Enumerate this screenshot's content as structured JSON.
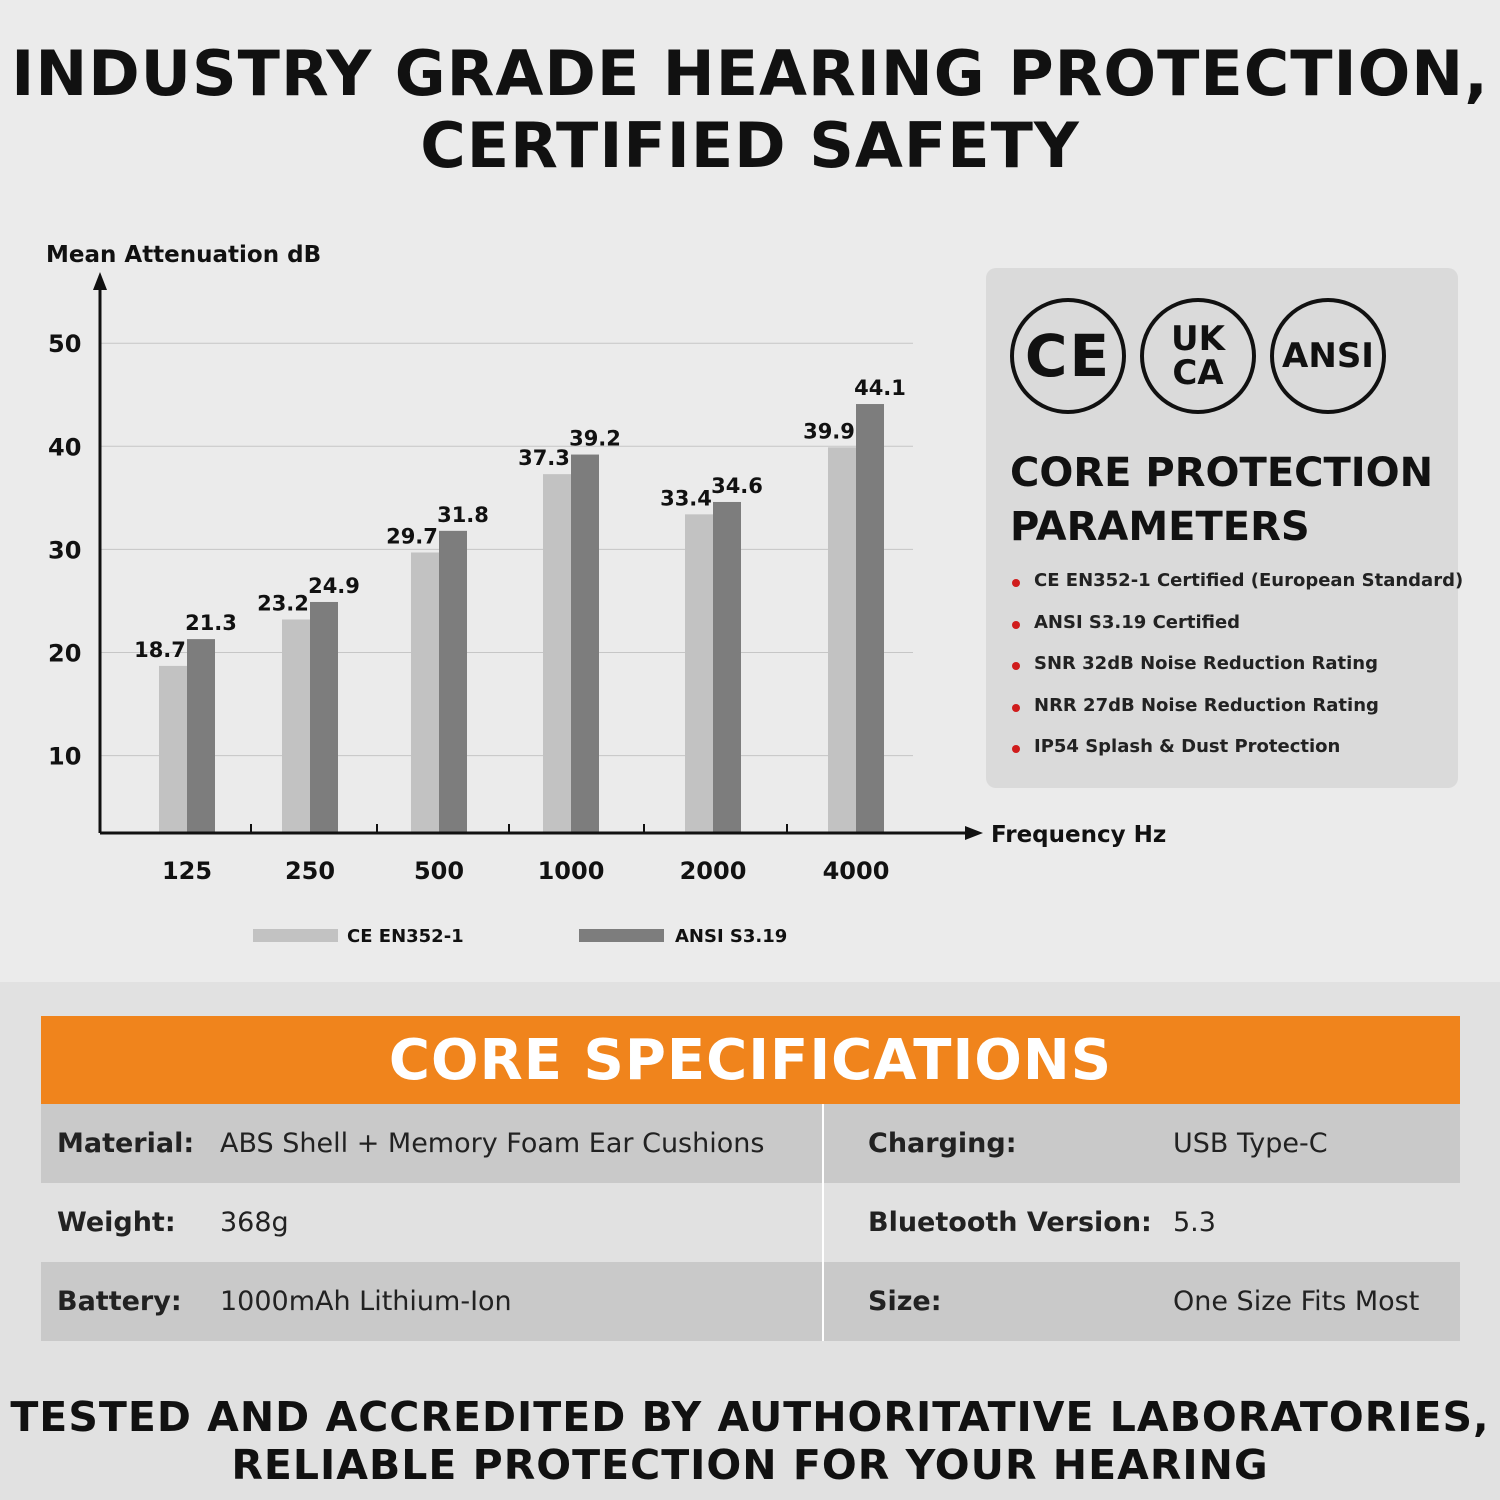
{
  "headline": {
    "line1": "INDUSTRY GRADE HEARING PROTECTION,",
    "line2": "CERTIFIED SAFETY"
  },
  "chart_data": {
    "type": "bar",
    "ylabel": "Mean Attenuation dB",
    "xlabel": "Frequency Hz",
    "categories": [
      "125",
      "250",
      "500",
      "1000",
      "2000",
      "4000"
    ],
    "yticks": [
      10,
      20,
      30,
      40,
      50
    ],
    "grid": true,
    "legend_position": "bottom",
    "series": [
      {
        "name": "CE EN352-1",
        "color": "#c2c2c2",
        "values": [
          18.7,
          23.2,
          29.7,
          37.3,
          33.4,
          39.9
        ]
      },
      {
        "name": "ANSI S3.19",
        "color": "#7d7d7d",
        "values": [
          21.3,
          24.9,
          31.8,
          39.2,
          34.6,
          44.1
        ]
      }
    ]
  },
  "certifications": {
    "badges": [
      "CE",
      "UK\nCA",
      "ANSI"
    ],
    "title_line1": "CORE PROTECTION",
    "title_line2": "PARAMETERS",
    "items": [
      "CE EN352-1 Certified (European Standard)",
      "ANSI S3.19 Certified",
      "SNR 32dB Noise Reduction Rating",
      "NRR 27dB Noise Reduction Rating",
      "IP54 Splash & Dust Protection"
    ],
    "bullet_color": "#d01c1c"
  },
  "specs": {
    "title": "CORE SPECIFICATIONS",
    "accent_color": "#f0841c",
    "rows": [
      {
        "left_label": "Material:",
        "left_value": "ABS Shell + Memory Foam Ear Cushions",
        "right_label": "Charging:",
        "right_value": "USB Type-C"
      },
      {
        "left_label": "Weight:",
        "left_value": "368g",
        "right_label": "Bluetooth Version:",
        "right_value": "5.3"
      },
      {
        "left_label": "Battery:",
        "left_value": "1000mAh Lithium-Ion",
        "right_label": "Size:",
        "right_value": "One Size Fits Most"
      }
    ]
  },
  "footer": {
    "line1": "TESTED AND ACCREDITED BY AUTHORITATIVE LABORATORIES,",
    "line2": "RELIABLE PROTECTION FOR YOUR HEARING"
  }
}
